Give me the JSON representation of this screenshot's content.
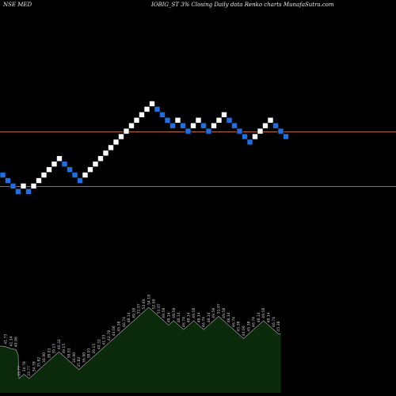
{
  "header": {
    "left": "NSE MED",
    "right": "IOBIG_ST 3% Closing Daily data Renko charts MunafaSutra.com"
  },
  "colors": {
    "background": "#000000",
    "up_brick": "#ffffff",
    "down_brick": "#1e6fe0",
    "ref_line": "#b8672a",
    "area_fill": "#0b2a0b",
    "area_line": "#8a8a8a",
    "label": "#cfcfcf"
  },
  "chart_data": {
    "type": "renko",
    "title": "IOBIG_ST 3% Closing Daily data Renko charts MunafaSutra.com",
    "bricks": [
      {
        "y": 36.9,
        "dir": "down"
      },
      {
        "y": 35.82,
        "dir": "down"
      },
      {
        "y": 34.78,
        "dir": "down"
      },
      {
        "y": 33.77,
        "dir": "down"
      },
      {
        "y": 34.78,
        "dir": "up"
      },
      {
        "y": 33.77,
        "dir": "down"
      },
      {
        "y": 34.78,
        "dir": "up"
      },
      {
        "y": 35.82,
        "dir": "up"
      },
      {
        "y": 36.9,
        "dir": "up"
      },
      {
        "y": 38.01,
        "dir": "up"
      },
      {
        "y": 39.15,
        "dir": "up"
      },
      {
        "y": 40.32,
        "dir": "up"
      },
      {
        "y": 39.15,
        "dir": "down"
      },
      {
        "y": 38.01,
        "dir": "down"
      },
      {
        "y": 36.9,
        "dir": "down"
      },
      {
        "y": 35.82,
        "dir": "down"
      },
      {
        "y": 36.9,
        "dir": "up"
      },
      {
        "y": 38.01,
        "dir": "up"
      },
      {
        "y": 39.15,
        "dir": "up"
      },
      {
        "y": 40.32,
        "dir": "up"
      },
      {
        "y": 41.53,
        "dir": "up"
      },
      {
        "y": 42.78,
        "dir": "up"
      },
      {
        "y": 44.06,
        "dir": "up"
      },
      {
        "y": 45.38,
        "dir": "up"
      },
      {
        "y": 46.74,
        "dir": "up"
      },
      {
        "y": 48.14,
        "dir": "up"
      },
      {
        "y": 49.58,
        "dir": "up"
      },
      {
        "y": 51.07,
        "dir": "up"
      },
      {
        "y": 52.6,
        "dir": "up"
      },
      {
        "y": 54.18,
        "dir": "up"
      },
      {
        "y": 52.6,
        "dir": "down"
      },
      {
        "y": 51.07,
        "dir": "down"
      },
      {
        "y": 49.58,
        "dir": "down"
      },
      {
        "y": 48.14,
        "dir": "down"
      },
      {
        "y": 49.58,
        "dir": "up"
      },
      {
        "y": 48.14,
        "dir": "down"
      },
      {
        "y": 46.74,
        "dir": "down"
      },
      {
        "y": 48.14,
        "dir": "up"
      },
      {
        "y": 49.58,
        "dir": "up"
      },
      {
        "y": 48.14,
        "dir": "down"
      },
      {
        "y": 46.74,
        "dir": "down"
      },
      {
        "y": 48.14,
        "dir": "up"
      },
      {
        "y": 49.58,
        "dir": "up"
      },
      {
        "y": 51.07,
        "dir": "up"
      },
      {
        "y": 49.58,
        "dir": "down"
      },
      {
        "y": 48.14,
        "dir": "down"
      },
      {
        "y": 46.74,
        "dir": "down"
      },
      {
        "y": 45.38,
        "dir": "down"
      },
      {
        "y": 44.06,
        "dir": "down"
      },
      {
        "y": 45.38,
        "dir": "up"
      },
      {
        "y": 46.74,
        "dir": "up"
      },
      {
        "y": 48.14,
        "dir": "up"
      },
      {
        "y": 49.58,
        "dir": "up"
      },
      {
        "y": 48.14,
        "dir": "down"
      },
      {
        "y": 46.74,
        "dir": "down"
      },
      {
        "y": 45.38,
        "dir": "down"
      }
    ],
    "ref_lines": [
      46.74,
      34.78
    ],
    "area_labels": [
      "33.77",
      "34.78",
      "33.77",
      "34.78",
      "35.82",
      "36.90",
      "38.01",
      "39.15",
      "40.32",
      "39.15",
      "38.01",
      "36.90",
      "35.82",
      "36.90",
      "38.01",
      "39.15",
      "40.32",
      "41.53",
      "42.78",
      "44.06",
      "45.38",
      "46.74",
      "48.14",
      "49.58",
      "51.07",
      "52.60",
      "54.18",
      "52.60",
      "51.07",
      "49.58",
      "48.14",
      "49.58",
      "48.14",
      "46.74",
      "48.14",
      "49.58",
      "48.14",
      "46.74",
      "48.14",
      "49.58",
      "51.07",
      "49.58",
      "48.14",
      "46.74",
      "45.38",
      "44.06",
      "45.38",
      "46.74",
      "48.14",
      "49.58",
      "48.14",
      "46.74",
      "45.38"
    ],
    "area_left_labels": [
      "41.14",
      "41.73",
      "40.96"
    ]
  }
}
